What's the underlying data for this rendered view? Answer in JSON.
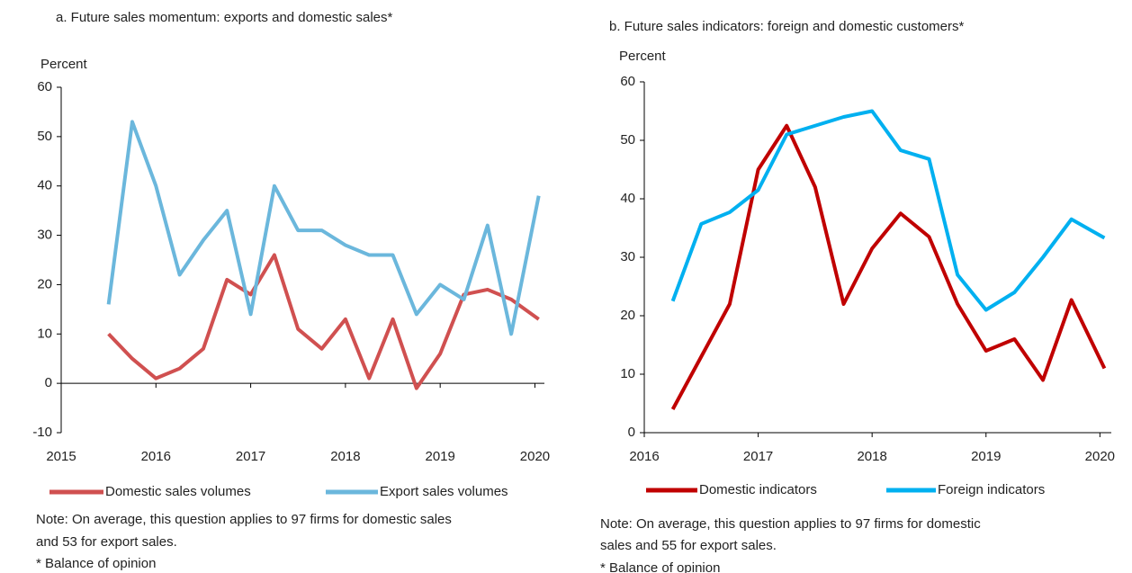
{
  "chart_data": [
    {
      "type": "line",
      "title": "a. Future sales momentum: exports and domestic sales*",
      "y_label": "Percent",
      "x": [
        2015.5,
        2015.75,
        2016,
        2016.25,
        2016.5,
        2016.75,
        2017,
        2017.25,
        2017.5,
        2017.75,
        2018,
        2018.25,
        2018.5,
        2018.75,
        2019,
        2019.25,
        2019.5,
        2019.75,
        2020.04
      ],
      "series": [
        {
          "name": "Domestic sales volumes",
          "color": "#d05050",
          "values": [
            10,
            5,
            1,
            3,
            7,
            21,
            18,
            26,
            11,
            7,
            13,
            1,
            13,
            -1,
            6,
            18,
            19,
            17,
            13
          ]
        },
        {
          "name": "Export sales volumes",
          "color": "#6bb7dc",
          "values": [
            16,
            53,
            40,
            22,
            29,
            35,
            14,
            40,
            31,
            31,
            28,
            26,
            26,
            14,
            20,
            17,
            32,
            10,
            38
          ]
        }
      ],
      "xlim": [
        2015,
        2020.1
      ],
      "xticks": [
        2015,
        2016,
        2017,
        2018,
        2019,
        2020
      ],
      "ylim": [
        -10,
        60
      ],
      "yticks": [
        -10,
        0,
        10,
        20,
        30,
        40,
        50,
        60
      ],
      "note": [
        "Note: On average, this question applies to 97 firms for domestic sales",
        "and 53 for export sales."
      ],
      "footnote": "* Balance of opinion"
    },
    {
      "type": "line",
      "title": "b. Future sales indicators: foreign and domestic customers*",
      "y_label": "Percent",
      "x": [
        2016.25,
        2016.5,
        2016.75,
        2017,
        2017.25,
        2017.5,
        2017.75,
        2018,
        2018.25,
        2018.5,
        2018.75,
        2019,
        2019.25,
        2019.5,
        2019.75,
        2020.04
      ],
      "series": [
        {
          "name": "Domestic indicators",
          "color": "#c00000",
          "values": [
            4,
            13,
            22,
            45,
            52.5,
            42,
            22,
            31.5,
            37.5,
            33.5,
            22,
            14,
            16,
            9,
            22.7,
            11
          ]
        },
        {
          "name": "Foreign indicators",
          "color": "#00b0f0",
          "values": [
            22.5,
            35.7,
            37.7,
            41.5,
            51,
            52.5,
            54,
            55,
            48.3,
            46.8,
            27,
            21,
            24,
            30,
            36.5,
            33.3
          ]
        }
      ],
      "xlim": [
        2016,
        2020.1
      ],
      "xticks": [
        2016,
        2017,
        2018,
        2019,
        2020
      ],
      "ylim": [
        0,
        60
      ],
      "yticks": [
        0,
        10,
        20,
        30,
        40,
        50,
        60
      ],
      "note": [
        "Note: On average, this question applies to 97 firms for domestic",
        "sales and 55 for export sales."
      ],
      "footnote": "* Balance of opinion"
    }
  ]
}
